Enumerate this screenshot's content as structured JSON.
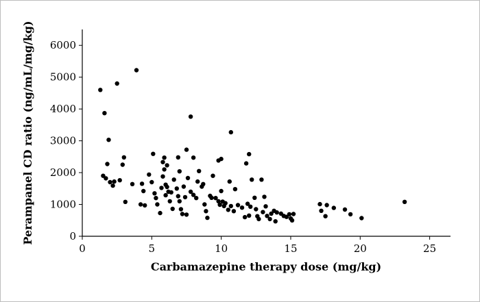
{
  "chart_data": {
    "type": "scatter",
    "title": "",
    "xlabel": "Carbamazepine therapy dose (mg/kg)",
    "ylabel": "Perampanel CD ratio (ng/mL/mg/kg)",
    "xlim": [
      0,
      26.5
    ],
    "ylim": [
      0,
      6500
    ],
    "xticks": [
      "0",
      "5",
      "10",
      "15",
      "20",
      "25"
    ],
    "yticks": [
      "0",
      "1000",
      "2000",
      "3000",
      "4000",
      "5000",
      "6000"
    ],
    "grid": false,
    "marker_color": "#000000",
    "points": [
      [
        1.3,
        4600
      ],
      [
        1.6,
        3870
      ],
      [
        1.9,
        3030
      ],
      [
        2.5,
        4800
      ],
      [
        3.9,
        5220
      ],
      [
        7.8,
        3760
      ],
      [
        10.7,
        3270
      ],
      [
        1.8,
        2270
      ],
      [
        2.9,
        2250
      ],
      [
        3.0,
        2480
      ],
      [
        5.1,
        2590
      ],
      [
        5.8,
        2330
      ],
      [
        5.9,
        2470
      ],
      [
        6.1,
        2230
      ],
      [
        6.9,
        2480
      ],
      [
        7.5,
        2720
      ],
      [
        8.0,
        2470
      ],
      [
        9.8,
        2380
      ],
      [
        10.0,
        2430
      ],
      [
        12.0,
        2580
      ],
      [
        11.8,
        2290
      ],
      [
        1.5,
        1900
      ],
      [
        1.7,
        1820
      ],
      [
        2.0,
        1700
      ],
      [
        2.2,
        1590
      ],
      [
        2.3,
        1720
      ],
      [
        2.7,
        1760
      ],
      [
        3.1,
        1080
      ],
      [
        3.6,
        1640
      ],
      [
        4.3,
        1650
      ],
      [
        4.4,
        1420
      ],
      [
        4.2,
        1000
      ],
      [
        4.5,
        970
      ],
      [
        4.8,
        1940
      ],
      [
        5.0,
        1700
      ],
      [
        5.2,
        1350
      ],
      [
        5.3,
        1200
      ],
      [
        5.4,
        1000
      ],
      [
        5.6,
        730
      ],
      [
        5.7,
        1520
      ],
      [
        5.8,
        1880
      ],
      [
        5.9,
        2100
      ],
      [
        6.0,
        1620
      ],
      [
        6.0,
        1290
      ],
      [
        6.1,
        1550
      ],
      [
        6.2,
        1400
      ],
      [
        6.3,
        1100
      ],
      [
        6.4,
        1380
      ],
      [
        6.5,
        860
      ],
      [
        6.6,
        1780
      ],
      [
        6.8,
        1500
      ],
      [
        6.9,
        1260
      ],
      [
        7.0,
        2040
      ],
      [
        7.0,
        1100
      ],
      [
        7.1,
        850
      ],
      [
        7.2,
        700
      ],
      [
        7.3,
        1560
      ],
      [
        7.4,
        1230
      ],
      [
        7.5,
        680
      ],
      [
        7.6,
        1830
      ],
      [
        7.8,
        1400
      ],
      [
        8.0,
        1300
      ],
      [
        8.2,
        1200
      ],
      [
        8.3,
        1720
      ],
      [
        8.4,
        2050
      ],
      [
        8.6,
        1560
      ],
      [
        8.7,
        1640
      ],
      [
        8.8,
        1000
      ],
      [
        8.9,
        790
      ],
      [
        9.0,
        580
      ],
      [
        9.2,
        1270
      ],
      [
        9.3,
        1210
      ],
      [
        9.4,
        1900
      ],
      [
        9.6,
        1200
      ],
      [
        9.8,
        1100
      ],
      [
        9.9,
        990
      ],
      [
        10.0,
        1420
      ],
      [
        10.1,
        1090
      ],
      [
        10.2,
        950
      ],
      [
        10.3,
        1040
      ],
      [
        10.5,
        830
      ],
      [
        10.6,
        1720
      ],
      [
        10.7,
        950
      ],
      [
        10.9,
        790
      ],
      [
        11.0,
        1480
      ],
      [
        11.2,
        980
      ],
      [
        11.5,
        900
      ],
      [
        11.7,
        600
      ],
      [
        11.9,
        1020
      ],
      [
        12.0,
        650
      ],
      [
        12.1,
        930
      ],
      [
        12.2,
        1780
      ],
      [
        12.4,
        1210
      ],
      [
        12.5,
        850
      ],
      [
        12.6,
        630
      ],
      [
        12.7,
        540
      ],
      [
        12.9,
        1780
      ],
      [
        13.0,
        760
      ],
      [
        13.1,
        1240
      ],
      [
        13.2,
        940
      ],
      [
        13.3,
        640
      ],
      [
        13.5,
        540
      ],
      [
        13.6,
        710
      ],
      [
        13.8,
        800
      ],
      [
        13.9,
        470
      ],
      [
        14.0,
        750
      ],
      [
        14.3,
        710
      ],
      [
        14.5,
        640
      ],
      [
        14.7,
        610
      ],
      [
        14.9,
        690
      ],
      [
        15.0,
        560
      ],
      [
        15.1,
        500
      ],
      [
        15.2,
        700
      ],
      [
        17.1,
        1010
      ],
      [
        17.2,
        800
      ],
      [
        17.5,
        630
      ],
      [
        17.6,
        980
      ],
      [
        18.1,
        890
      ],
      [
        18.9,
        840
      ],
      [
        19.3,
        690
      ],
      [
        20.1,
        570
      ],
      [
        23.2,
        1080
      ]
    ]
  }
}
